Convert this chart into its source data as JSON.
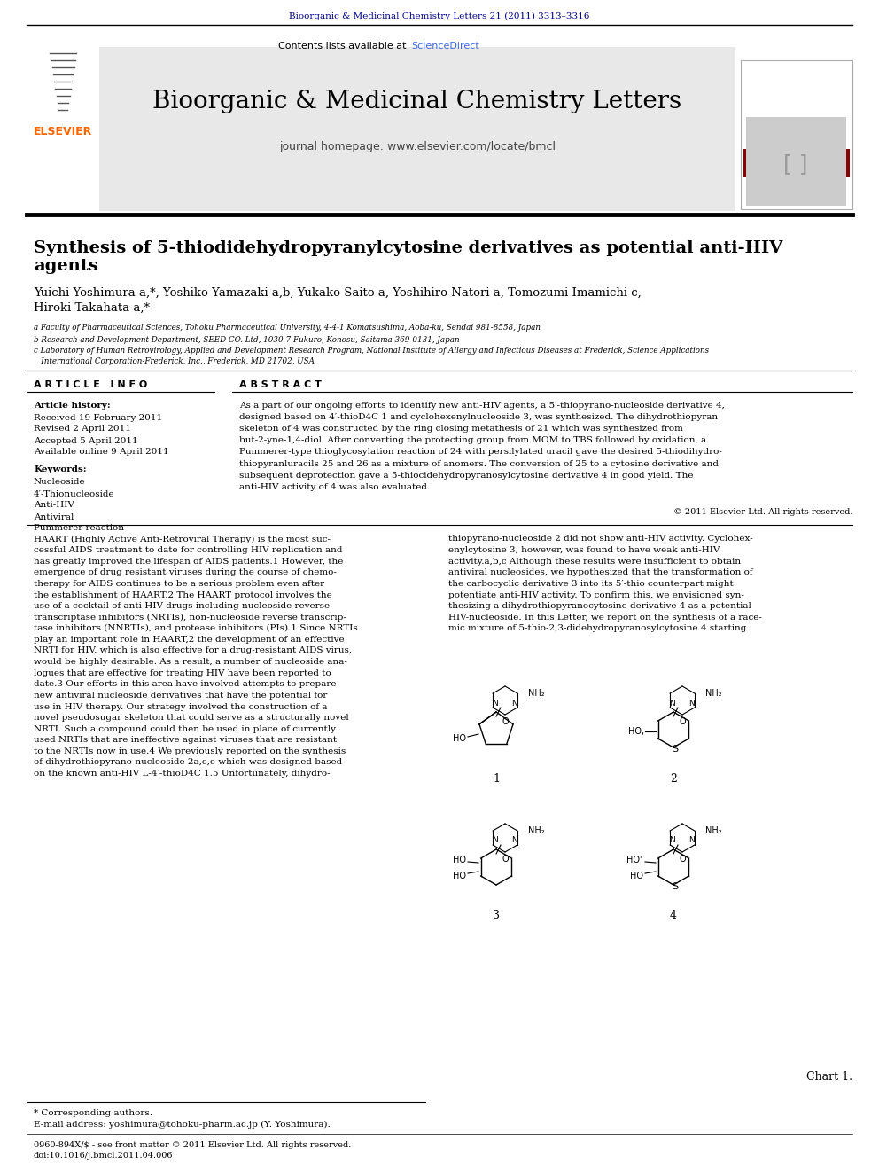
{
  "bg_color": "#ffffff",
  "top_citation": "Bioorganic & Medicinal Chemistry Letters 21 (2011) 3313–3316",
  "top_citation_color": "#00008B",
  "header_bg": "#e8e8e8",
  "header_journal": "Bioorganic & Medicinal Chemistry Letters",
  "header_homepage": "journal homepage: www.elsevier.com/locate/bmcl",
  "header_sciencedirect_plain": "Contents lists available at ",
  "header_sciencedirect_link": "ScienceDirect",
  "elsevier_color": "#FF6600",
  "separator_color": "#000000",
  "article_title_line1": "Synthesis of 5-thiodidehydropyranylcytosine derivatives as potential anti-HIV",
  "article_title_line2": "agents",
  "authors_line1": "Yuichi Yoshimura a,*, Yoshiko Yamazaki a,b, Yukako Saito a, Yoshihiro Natori a, Tomozumi Imamichi c,",
  "authors_line2": "Hiroki Takahata a,*",
  "affil_a": "a Faculty of Pharmaceutical Sciences, Tohoku Pharmaceutical University, 4-4-1 Komatsushima, Aoba-ku, Sendai 981-8558, Japan",
  "affil_b": "b Research and Development Department, SEED CO. Ltd, 1030-7 Fukuro, Konosu, Saitama 369-0131, Japan",
  "affil_c1": "c Laboratory of Human Retrovirology, Applied and Development Research Program, National Institute of Allergy and Infectious Diseases at Frederick, Science Applications",
  "affil_c2": "   International Corporation-Frederick, Inc., Frederick, MD 21702, USA",
  "article_info_title": "A R T I C L E   I N F O",
  "abstract_title": "A B S T R A C T",
  "article_history_label": "Article history:",
  "received": "Received 19 February 2011",
  "revised": "Revised 2 April 2011",
  "accepted": "Accepted 5 April 2011",
  "online": "Available online 9 April 2011",
  "keywords_label": "Keywords:",
  "keywords": [
    "Nucleoside",
    "4′-Thionucleoside",
    "Anti-HIV",
    "Antiviral",
    "Pummerer reaction"
  ],
  "abstract_lines": [
    "As a part of our ongoing efforts to identify new anti-HIV agents, a 5′-thiopyrano-nucleoside derivative 4,",
    "designed based on 4′-thioD4C 1 and cyclohexenylnucleoside 3, was synthesized. The dihydrothiopyran",
    "skeleton of 4 was constructed by the ring closing metathesis of 21 which was synthesized from",
    "but-2-yne-1,4-diol. After converting the protecting group from MOM to TBS followed by oxidation, a",
    "Pummerer-type thioglycosylation reaction of 24 with persilylated uracil gave the desired 5-thiodihydro-",
    "thiopyranluracils 25 and 26 as a mixture of anomers. The conversion of 25 to a cytosine derivative and",
    "subsequent deprotection gave a 5-thiocidehydropyranosylcytosine derivative 4 in good yield. The",
    "anti-HIV activity of 4 was also evaluated."
  ],
  "copyright": "© 2011 Elsevier Ltd. All rights reserved.",
  "body_col1_lines": [
    "HAART (Highly Active Anti-Retroviral Therapy) is the most suc-",
    "cessful AIDS treatment to date for controlling HIV replication and",
    "has greatly improved the lifespan of AIDS patients.1 However, the",
    "emergence of drug resistant viruses during the course of chemo-",
    "therapy for AIDS continues to be a serious problem even after",
    "the establishment of HAART.2 The HAART protocol involves the",
    "use of a cocktail of anti-HIV drugs including nucleoside reverse",
    "transcriptase inhibitors (NRTIs), non-nucleoside reverse transcrip-",
    "tase inhibitors (NNRTIs), and protease inhibitors (PIs).1 Since NRTIs",
    "play an important role in HAART,2 the development of an effective",
    "NRTI for HIV, which is also effective for a drug-resistant AIDS virus,",
    "would be highly desirable. As a result, a number of nucleoside ana-",
    "logues that are effective for treating HIV have been reported to",
    "date.3 Our efforts in this area have involved attempts to prepare",
    "new antiviral nucleoside derivatives that have the potential for",
    "use in HIV therapy. Our strategy involved the construction of a",
    "novel pseudosugar skeleton that could serve as a structurally novel",
    "NRTI. Such a compound could then be used in place of currently",
    "used NRTIs that are ineffective against viruses that are resistant",
    "to the NRTIs now in use.4 We previously reported on the synthesis",
    "of dihydrothiopyrano-nucleoside 2a,c,e which was designed based",
    "on the known anti-HIV L-4′-thioD4C 1.5 Unfortunately, dihydro-"
  ],
  "body_col2_lines": [
    "thiopyrano-nucleoside 2 did not show anti-HIV activity. Cyclohex-",
    "enylcytosine 3, however, was found to have weak anti-HIV",
    "activity.a,b,c Although these results were insufficient to obtain",
    "antiviral nucleosides, we hypothesized that the transformation of",
    "the carbocyclic derivative 3 into its 5′-thio counterpart might",
    "potentiate anti-HIV activity. To confirm this, we envisioned syn-",
    "thesizing a dihydrothiopyranocytosine derivative 4 as a potential",
    "HIV-nucleoside. In this Letter, we report on the synthesis of a race-",
    "mic mixture of 5-thio-2,3-didehydropyranosylcytosine 4 starting"
  ],
  "footnote_star": "* Corresponding authors.",
  "footnote_email": "E-mail address: yoshimura@tohoku-pharm.ac.jp (Y. Yoshimura).",
  "footnote_issn": "0960-894X/$ - see front matter © 2011 Elsevier Ltd. All rights reserved.",
  "footnote_doi": "doi:10.1016/j.bmcl.2011.04.006",
  "chart_label": "Chart 1."
}
